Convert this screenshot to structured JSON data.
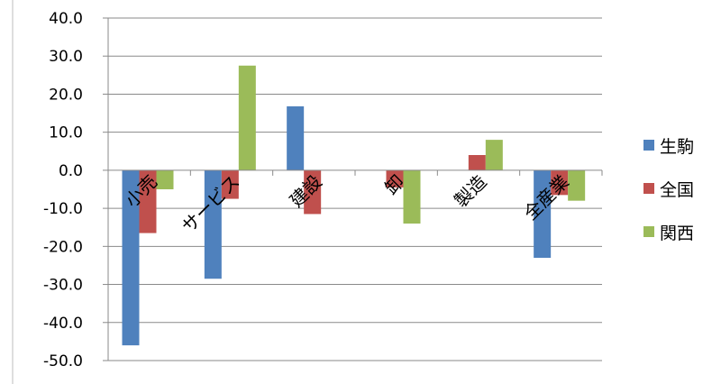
{
  "chart_data": {
    "type": "bar",
    "categories": [
      "小売",
      "サービス",
      "建設",
      "卸",
      "製造",
      "全産業"
    ],
    "series": [
      {
        "name": "生駒",
        "color": "#4F81BD",
        "values": [
          -46.0,
          -28.5,
          16.8,
          0.0,
          0.0,
          -23.0
        ]
      },
      {
        "name": "全国",
        "color": "#C0504D",
        "values": [
          -16.5,
          -7.5,
          -11.5,
          -4.5,
          4.0,
          -6.5
        ]
      },
      {
        "name": "関西",
        "color": "#9BBB59",
        "values": [
          -5.0,
          27.5,
          0.0,
          -14.0,
          8.0,
          -8.0
        ]
      }
    ],
    "ylim": [
      -50,
      40
    ],
    "yticks": [
      -50,
      -40,
      -30,
      -20,
      -10,
      0,
      10,
      20,
      30,
      40
    ],
    "ytick_labels": [
      "-50.0",
      "-40.0",
      "-30.0",
      "-20.0",
      "-10.0",
      "0.0",
      "10.0",
      "20.0",
      "30.0",
      "40.0"
    ],
    "grid": true,
    "legend_position": "right",
    "title": "",
    "xlabel": "",
    "ylabel": ""
  }
}
